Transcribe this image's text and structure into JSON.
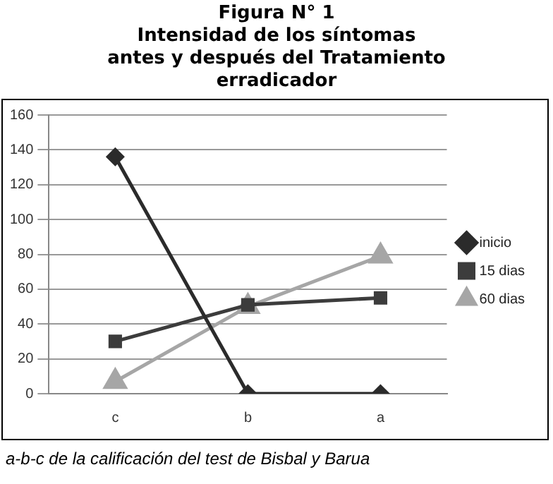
{
  "chart_data": {
    "type": "line",
    "title": "Figura  N° 1\nIntensidad de los síntomas\nantes y después del Tratamiento\nerradicador",
    "categories": [
      "c",
      "b",
      "a"
    ],
    "series": [
      {
        "name": "inicio",
        "color": "#2b2b2b",
        "values": [
          136,
          0,
          0
        ],
        "marker": "diamond"
      },
      {
        "name": "15 dias",
        "color": "#3c3c3c",
        "values": [
          30,
          51,
          55
        ],
        "marker": "square"
      },
      {
        "name": "60 dias",
        "color": "#a6a6a6",
        "values": [
          7,
          50,
          79
        ],
        "marker": "triangle"
      }
    ],
    "ylim": [
      0,
      160
    ],
    "yticks": [
      0,
      20,
      40,
      60,
      80,
      100,
      120,
      140,
      160
    ],
    "grid": "y",
    "legend": "right",
    "annotations": [
      "a-b-c de la calificación del test de Bisbal y Barua"
    ]
  }
}
